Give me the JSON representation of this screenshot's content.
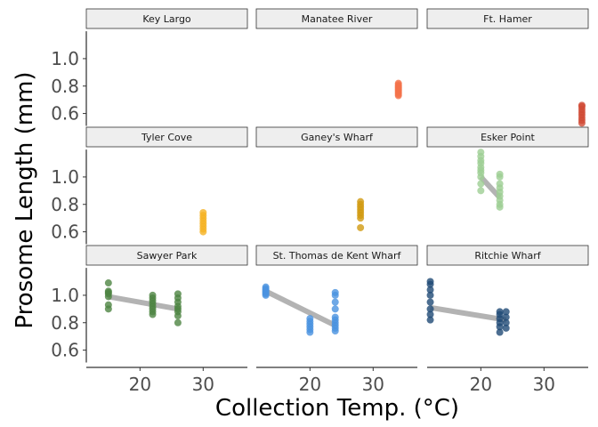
{
  "chart_data": {
    "type": "scatter",
    "title": "",
    "xlabel": "Collection Temp. (°C)",
    "ylabel": "Prosome Length (mm)",
    "xlim": [
      11.5,
      37
    ],
    "ylim": [
      0.5,
      1.22
    ],
    "xticks": [
      "20",
      "30"
    ],
    "yticks": [
      "0.6",
      "0.8",
      "1.0"
    ],
    "xtick_values": [
      20,
      30
    ],
    "ytick_values": [
      0.6,
      0.8,
      1.0
    ],
    "grid": false,
    "legend": "none",
    "panels": [
      {
        "name": "Key Largo",
        "color": "#888888",
        "points": [],
        "trend": null
      },
      {
        "name": "Manatee River",
        "color": "#F4724A",
        "points": [
          [
            34,
            0.73
          ],
          [
            34,
            0.74
          ],
          [
            34,
            0.75
          ],
          [
            34,
            0.76
          ],
          [
            34,
            0.77
          ],
          [
            34,
            0.78
          ],
          [
            34,
            0.79
          ],
          [
            34,
            0.8
          ],
          [
            34,
            0.81
          ],
          [
            34,
            0.82
          ]
        ],
        "trend": null
      },
      {
        "name": "Ft. Hamer",
        "color": "#D04A35",
        "points": [
          [
            36,
            0.53
          ],
          [
            36,
            0.55
          ],
          [
            36,
            0.57
          ],
          [
            36,
            0.59
          ],
          [
            36,
            0.61
          ],
          [
            36,
            0.63
          ],
          [
            36,
            0.65
          ],
          [
            36,
            0.66
          ]
        ],
        "trend": null
      },
      {
        "name": "Tyler Cove",
        "color": "#F5B324",
        "points": [
          [
            30,
            0.6
          ],
          [
            30,
            0.62
          ],
          [
            30,
            0.64
          ],
          [
            30,
            0.66
          ],
          [
            30,
            0.68
          ],
          [
            30,
            0.7
          ],
          [
            30,
            0.72
          ],
          [
            30,
            0.74
          ]
        ],
        "trend": null
      },
      {
        "name": "Ganey's Wharf",
        "color": "#D19A10",
        "points": [
          [
            28,
            0.63
          ],
          [
            28,
            0.7
          ],
          [
            28,
            0.72
          ],
          [
            28,
            0.74
          ],
          [
            28,
            0.76
          ],
          [
            28,
            0.78
          ],
          [
            28,
            0.8
          ],
          [
            28,
            0.82
          ]
        ],
        "trend": null
      },
      {
        "name": "Esker Point",
        "color": "#9ECE94",
        "points": [
          [
            20,
            0.9
          ],
          [
            20,
            0.95
          ],
          [
            20,
            1.0
          ],
          [
            20,
            1.03
          ],
          [
            20,
            1.05
          ],
          [
            20,
            1.07
          ],
          [
            20,
            1.1
          ],
          [
            20,
            1.12
          ],
          [
            20,
            1.15
          ],
          [
            20,
            1.18
          ],
          [
            23,
            0.78
          ],
          [
            23,
            0.8
          ],
          [
            23,
            0.83
          ],
          [
            23,
            0.86
          ],
          [
            23,
            0.89
          ],
          [
            23,
            0.92
          ],
          [
            23,
            0.95
          ],
          [
            23,
            1.0
          ],
          [
            23,
            1.02
          ]
        ],
        "trend": [
          [
            20,
            1.0
          ],
          [
            23,
            0.85
          ]
        ]
      },
      {
        "name": "Sawyer Park",
        "color": "#4E8442",
        "points": [
          [
            15,
            0.9
          ],
          [
            15,
            0.93
          ],
          [
            15,
            0.99
          ],
          [
            15,
            1.01
          ],
          [
            15,
            1.02
          ],
          [
            15,
            1.03
          ],
          [
            15,
            1.09
          ],
          [
            22,
            0.86
          ],
          [
            22,
            0.88
          ],
          [
            22,
            0.9
          ],
          [
            22,
            0.92
          ],
          [
            22,
            0.94
          ],
          [
            22,
            0.96
          ],
          [
            22,
            0.98
          ],
          [
            22,
            1.0
          ],
          [
            26,
            0.8
          ],
          [
            26,
            0.85
          ],
          [
            26,
            0.88
          ],
          [
            26,
            0.9
          ],
          [
            26,
            0.92
          ],
          [
            26,
            0.95
          ],
          [
            26,
            0.98
          ],
          [
            26,
            1.01
          ]
        ],
        "trend": [
          [
            15,
            0.99
          ],
          [
            26,
            0.9
          ]
        ]
      },
      {
        "name": "St. Thomas de Kent Wharf",
        "color": "#4A92E0",
        "points": [
          [
            13,
            1.0
          ],
          [
            13,
            1.01
          ],
          [
            13,
            1.02
          ],
          [
            13,
            1.03
          ],
          [
            13,
            1.04
          ],
          [
            13,
            1.05
          ],
          [
            13,
            1.06
          ],
          [
            20,
            0.73
          ],
          [
            20,
            0.75
          ],
          [
            20,
            0.77
          ],
          [
            20,
            0.79
          ],
          [
            20,
            0.81
          ],
          [
            20,
            0.83
          ],
          [
            24,
            0.74
          ],
          [
            24,
            0.76
          ],
          [
            24,
            0.78
          ],
          [
            24,
            0.8
          ],
          [
            24,
            0.82
          ],
          [
            24,
            0.84
          ],
          [
            24,
            0.9
          ],
          [
            24,
            0.95
          ],
          [
            24,
            1.0
          ],
          [
            24,
            1.02
          ]
        ],
        "trend": [
          [
            13,
            1.03
          ],
          [
            24,
            0.78
          ]
        ]
      },
      {
        "name": "Ritchie Wharf",
        "color": "#1F4A75",
        "points": [
          [
            12,
            0.82
          ],
          [
            12,
            0.86
          ],
          [
            12,
            0.9
          ],
          [
            12,
            0.95
          ],
          [
            12,
            1.0
          ],
          [
            12,
            1.04
          ],
          [
            12,
            1.08
          ],
          [
            12,
            1.1
          ],
          [
            23,
            0.73
          ],
          [
            23,
            0.77
          ],
          [
            23,
            0.8
          ],
          [
            23,
            0.83
          ],
          [
            23,
            0.86
          ],
          [
            23,
            0.88
          ],
          [
            24,
            0.76
          ],
          [
            24,
            0.8
          ],
          [
            24,
            0.84
          ],
          [
            24,
            0.88
          ]
        ],
        "trend": [
          [
            12,
            0.91
          ],
          [
            24,
            0.82
          ]
        ]
      }
    ]
  }
}
